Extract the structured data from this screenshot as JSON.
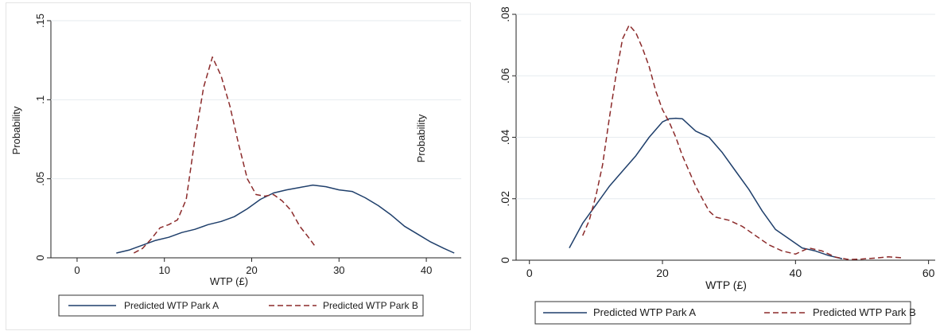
{
  "chart_data": [
    {
      "type": "line",
      "title": "",
      "xlabel": "WTP (£)",
      "ylabel": "Probability",
      "secondary_ylabel": "Probability",
      "xlim": [
        -3,
        44
      ],
      "ylim": [
        0,
        0.15
      ],
      "x_ticks": [
        "0",
        "10",
        "20",
        "30",
        "40"
      ],
      "y_ticks": [
        ".15",
        ".1",
        ".05",
        "0"
      ],
      "grid": "horizontal",
      "legend_position": "bottom",
      "series": [
        {
          "name": "Predicted WTP Park A",
          "color": "#1f3f6b",
          "style": "solid",
          "points": [
            [
              4.5,
              0.003
            ],
            [
              6,
              0.005
            ],
            [
              7.5,
              0.008
            ],
            [
              9,
              0.011
            ],
            [
              10.5,
              0.013
            ],
            [
              12,
              0.016
            ],
            [
              13.5,
              0.018
            ],
            [
              15,
              0.021
            ],
            [
              16.5,
              0.023
            ],
            [
              18,
              0.026
            ],
            [
              19.5,
              0.031
            ],
            [
              21,
              0.037
            ],
            [
              22.5,
              0.041
            ],
            [
              24,
              0.043
            ],
            [
              25.5,
              0.0445
            ],
            [
              27,
              0.046
            ],
            [
              28.5,
              0.045
            ],
            [
              30,
              0.043
            ],
            [
              31.5,
              0.042
            ],
            [
              33,
              0.038
            ],
            [
              34.5,
              0.033
            ],
            [
              36,
              0.027
            ],
            [
              37.5,
              0.02
            ],
            [
              39,
              0.015
            ],
            [
              40.5,
              0.01
            ],
            [
              42,
              0.006
            ],
            [
              43.2,
              0.003
            ]
          ]
        },
        {
          "name": "Predicted WTP Park B",
          "color": "#8b2a2a",
          "style": "dashed",
          "points": [
            [
              6.5,
              0.003
            ],
            [
              7.5,
              0.006
            ],
            [
              8.5,
              0.012
            ],
            [
              9.5,
              0.019
            ],
            [
              10.5,
              0.021
            ],
            [
              11.5,
              0.024
            ],
            [
              12.5,
              0.037
            ],
            [
              13.5,
              0.075
            ],
            [
              14.5,
              0.108
            ],
            [
              15.5,
              0.127
            ],
            [
              16.5,
              0.115
            ],
            [
              17.5,
              0.096
            ],
            [
              18.5,
              0.072
            ],
            [
              19.5,
              0.05
            ],
            [
              20.5,
              0.04
            ],
            [
              21.5,
              0.039
            ],
            [
              22.5,
              0.04
            ],
            [
              23.5,
              0.036
            ],
            [
              24.5,
              0.03
            ],
            [
              25.5,
              0.02
            ],
            [
              26.5,
              0.013
            ],
            [
              27.3,
              0.007
            ]
          ]
        }
      ]
    },
    {
      "type": "line",
      "title": "",
      "xlabel": "WTP (£)",
      "ylabel": "",
      "xlim": [
        -2,
        61
      ],
      "ylim": [
        0,
        0.08
      ],
      "x_ticks": [
        "0",
        "20",
        "40",
        "60"
      ],
      "y_ticks": [
        ".08",
        ".06",
        ".04",
        ".02",
        "0"
      ],
      "grid": "horizontal",
      "legend_position": "bottom",
      "series": [
        {
          "name": "Predicted WTP Park A",
          "color": "#1f3f6b",
          "style": "solid",
          "points": [
            [
              6,
              0.004
            ],
            [
              7,
              0.008
            ],
            [
              8,
              0.012
            ],
            [
              9,
              0.015
            ],
            [
              10,
              0.018
            ],
            [
              12,
              0.024
            ],
            [
              14,
              0.029
            ],
            [
              16,
              0.034
            ],
            [
              18,
              0.04
            ],
            [
              20,
              0.045
            ],
            [
              21,
              0.046
            ],
            [
              22,
              0.0462
            ],
            [
              23,
              0.046
            ],
            [
              24,
              0.044
            ],
            [
              25,
              0.042
            ],
            [
              27,
              0.04
            ],
            [
              29,
              0.035
            ],
            [
              31,
              0.029
            ],
            [
              33,
              0.023
            ],
            [
              35,
              0.016
            ],
            [
              37,
              0.01
            ],
            [
              39,
              0.007
            ],
            [
              41,
              0.004
            ],
            [
              43,
              0.003
            ],
            [
              45,
              0.0015
            ],
            [
              47,
              0.0005
            ]
          ]
        },
        {
          "name": "Predicted WTP Park B",
          "color": "#8b2a2a",
          "style": "dashed",
          "points": [
            [
              8,
              0.008
            ],
            [
              9,
              0.013
            ],
            [
              10,
              0.021
            ],
            [
              11,
              0.031
            ],
            [
              12,
              0.046
            ],
            [
              13,
              0.06
            ],
            [
              14,
              0.072
            ],
            [
              15,
              0.0765
            ],
            [
              16,
              0.074
            ],
            [
              17,
              0.069
            ],
            [
              18,
              0.063
            ],
            [
              19,
              0.055
            ],
            [
              20,
              0.049
            ],
            [
              21,
              0.045
            ],
            [
              22,
              0.04
            ],
            [
              23,
              0.034
            ],
            [
              24,
              0.029
            ],
            [
              25,
              0.024
            ],
            [
              26,
              0.02
            ],
            [
              27,
              0.016
            ],
            [
              28,
              0.014
            ],
            [
              30,
              0.013
            ],
            [
              32,
              0.011
            ],
            [
              34,
              0.008
            ],
            [
              36,
              0.005
            ],
            [
              38,
              0.003
            ],
            [
              40,
              0.002
            ],
            [
              42,
              0.004
            ],
            [
              44,
              0.003
            ],
            [
              46,
              0.001
            ],
            [
              48,
              0.0002
            ],
            [
              50,
              0.0004
            ],
            [
              52,
              0.0007
            ],
            [
              54,
              0.0011
            ],
            [
              56,
              0.0008
            ]
          ]
        }
      ]
    }
  ]
}
